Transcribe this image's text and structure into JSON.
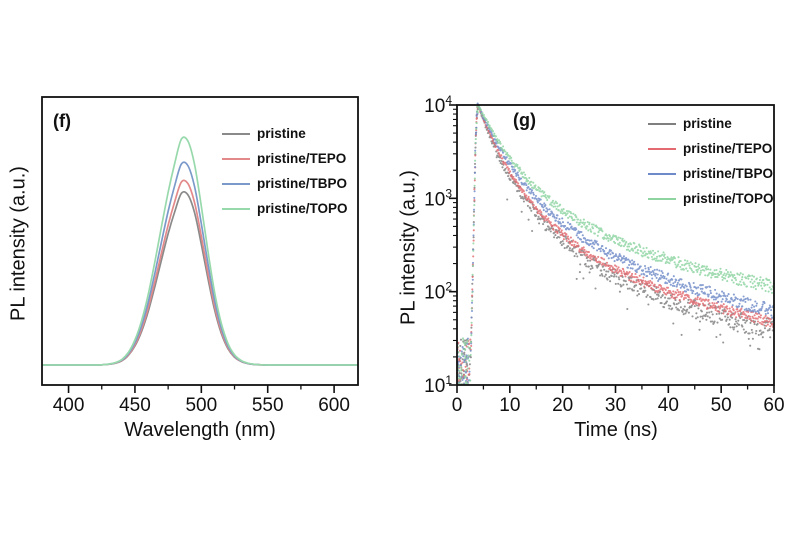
{
  "figure": {
    "background": "#ffffff",
    "description": "Two-panel photoluminescence figure: (f) PL emission spectra, (g) time-resolved PL decay"
  },
  "chart_data": [
    {
      "id": "f",
      "type": "line",
      "panel_label": "(f)",
      "xlabel": "Wavelength (nm)",
      "ylabel": "PL intensity (a.u.)",
      "xlim": [
        380,
        618
      ],
      "x_major_ticks": [
        400,
        450,
        500,
        550,
        600
      ],
      "x_minor_ticks": [
        425,
        475,
        525,
        575
      ],
      "y_axis": "linear, arbitrary units, no tick labels",
      "peak_wavelength_nm": 485,
      "wavelength_nm": [
        425,
        430,
        435,
        440,
        445,
        450,
        455,
        460,
        465,
        470,
        475,
        480,
        485,
        490,
        495,
        500,
        505,
        510,
        515,
        520,
        525,
        530,
        535,
        540,
        545,
        550,
        555
      ],
      "shape_normalized": [
        0.001,
        0.004,
        0.01,
        0.024,
        0.055,
        0.11,
        0.195,
        0.31,
        0.455,
        0.61,
        0.76,
        0.89,
        0.995,
        0.985,
        0.88,
        0.7,
        0.5,
        0.32,
        0.185,
        0.095,
        0.045,
        0.02,
        0.008,
        0.003,
        0.001,
        0.0,
        0.0
      ],
      "series": [
        {
          "name": "pristine",
          "color": "#8a8a8a",
          "relative_peak": 0.76
        },
        {
          "name": "pristine/TEPO",
          "color": "#e4898a",
          "relative_peak": 0.81
        },
        {
          "name": "pristine/TBPO",
          "color": "#7b9aca",
          "relative_peak": 0.89
        },
        {
          "name": "pristine/TOPO",
          "color": "#98d9ac",
          "relative_peak": 1.0
        }
      ],
      "legend_position": "top-right"
    },
    {
      "id": "g",
      "type": "scatter",
      "panel_label": "(g)",
      "xlabel": "Time (ns)",
      "ylabel": "PL intensity (a.u.)",
      "xlim": [
        0,
        60
      ],
      "ylim": [
        10,
        10000
      ],
      "yscale": "log",
      "x_major_ticks": [
        0,
        10,
        20,
        30,
        40,
        50,
        60
      ],
      "x_minor_ticks": [
        5,
        15,
        25,
        35,
        45,
        55
      ],
      "y_decades": [
        1,
        2,
        3,
        4
      ],
      "y_tick_base": "10",
      "rise": {
        "t": [
          2.6,
          2.8,
          3.0,
          3.2,
          3.4,
          3.6,
          3.8,
          4.0
        ],
        "counts": [
          20,
          55,
          170,
          600,
          2100,
          5400,
          8600,
          9800
        ]
      },
      "noise_floor": {
        "t_range": [
          0,
          2.55
        ],
        "counts_range": [
          10,
          32
        ]
      },
      "decay_t_ns": [
        4,
        5,
        6,
        7,
        8,
        9,
        10,
        12,
        14,
        16,
        18,
        20,
        24,
        28,
        32,
        36,
        40,
        44,
        48,
        52,
        56,
        60
      ],
      "series": [
        {
          "name": "pristine",
          "color": "#7f7f7f",
          "counts": [
            9800,
            6900,
            4900,
            3650,
            2750,
            2120,
            1750,
            1150,
            800,
            585,
            448,
            352,
            233,
            165,
            126,
            100,
            81,
            67,
            57,
            49,
            44,
            39
          ]
        },
        {
          "name": "pristine/TEPO",
          "color": "#e26a70",
          "counts": [
            9800,
            7100,
            5200,
            3950,
            3020,
            2360,
            1900,
            1270,
            900,
            668,
            514,
            410,
            273,
            199,
            153,
            122,
            100,
            84,
            72,
            62,
            54,
            46
          ]
        },
        {
          "name": "pristine/TBPO",
          "color": "#6f8ac8",
          "counts": [
            9800,
            7400,
            5700,
            4420,
            3500,
            2800,
            2300,
            1600,
            1155,
            870,
            678,
            542,
            373,
            272,
            209,
            166,
            136,
            113,
            96,
            82,
            71,
            61
          ]
        },
        {
          "name": "pristine/TOPO",
          "color": "#8dd4a1",
          "counts": [
            9800,
            7750,
            6100,
            4880,
            3950,
            3250,
            2700,
            1940,
            1450,
            1125,
            908,
            748,
            536,
            405,
            320,
            262,
            220,
            188,
            163,
            143,
            127,
            113
          ]
        }
      ],
      "legend_position": "top-right"
    }
  ]
}
